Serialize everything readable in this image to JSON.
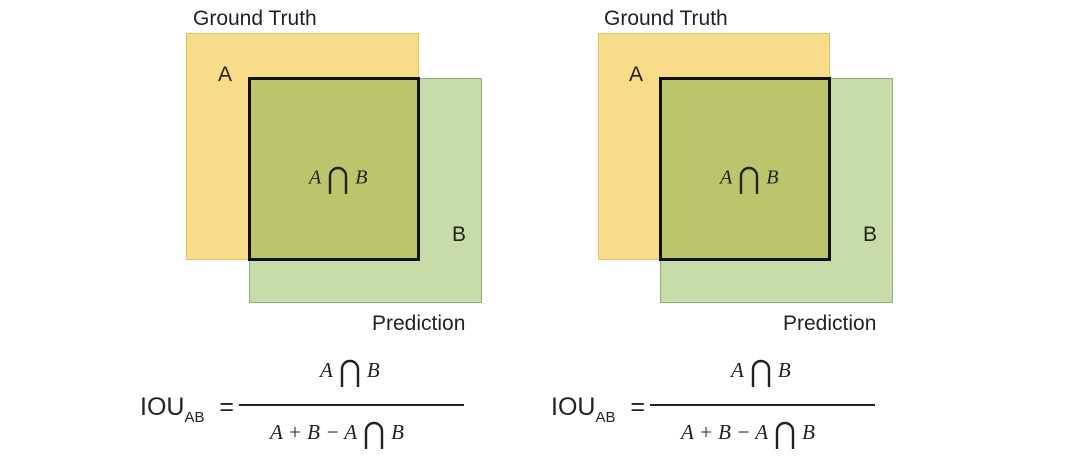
{
  "colors": {
    "ground_truth_fill": "#f9dc8a",
    "ground_truth_border": "#e7c35d",
    "prediction_fill": "#c7dca8",
    "prediction_border": "#8fb26f",
    "intersection_fill": "#bcc56b",
    "intersection_border": "#111111",
    "text": "#222222"
  },
  "panels": [
    {
      "ground_truth_label": "Ground Truth",
      "a_label": "A",
      "b_label": "B",
      "prediction_label": "Prediction",
      "intersection": {
        "left": "A",
        "symbol": "cap-icon",
        "right": "B"
      },
      "formula": {
        "lhs": "IOU",
        "lhs_sub": "AB",
        "equals": "=",
        "numerator": {
          "left": "A",
          "symbol": "cap-icon",
          "right": "B"
        },
        "denominator": {
          "prefix": "A + B − A",
          "symbol": "cap-icon",
          "right": "B"
        }
      }
    },
    {
      "ground_truth_label": "Ground Truth",
      "a_label": "A",
      "b_label": "B",
      "prediction_label": "Prediction",
      "intersection": {
        "left": "A",
        "symbol": "cap-icon",
        "right": "B"
      },
      "formula": {
        "lhs": "IOU",
        "lhs_sub": "AB",
        "equals": "=",
        "numerator": {
          "left": "A",
          "symbol": "cap-icon",
          "right": "B"
        },
        "denominator": {
          "prefix": "A + B − A",
          "symbol": "cap-icon",
          "right": "B"
        }
      }
    }
  ]
}
